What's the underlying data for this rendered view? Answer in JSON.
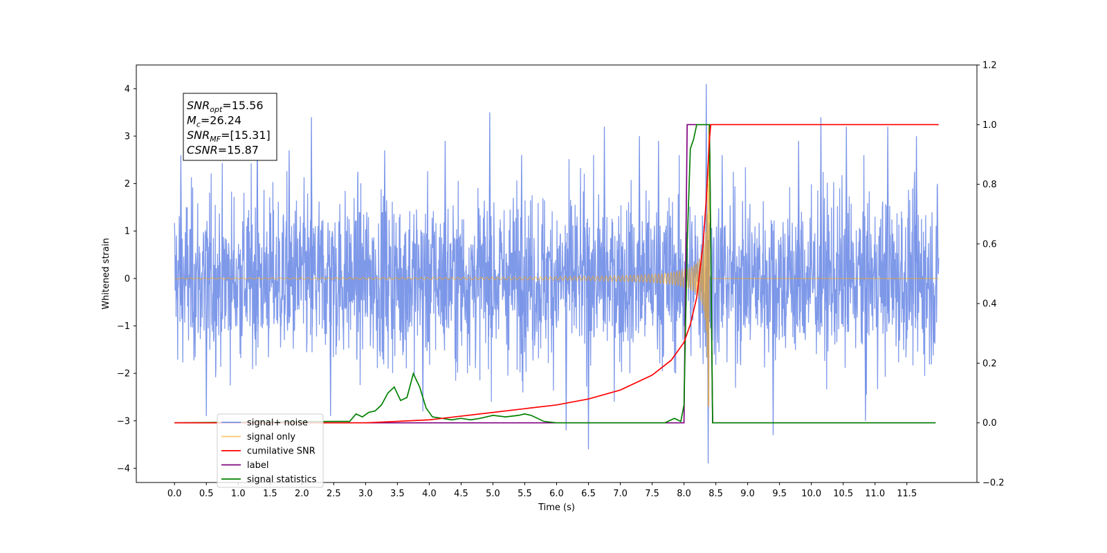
{
  "chart_data": {
    "type": "line",
    "xlabel": "Time (s)",
    "ylabel": "Whitened strain",
    "xlim": [
      -0.6,
      12.6
    ],
    "ylim": [
      -4.3,
      4.5
    ],
    "y2lim": [
      -0.2,
      1.2
    ],
    "x_ticks": [
      "0.0",
      "0.5",
      "1.0",
      "1.5",
      "2.0",
      "2.5",
      "3.0",
      "3.5",
      "4.0",
      "4.5",
      "5.0",
      "5.5",
      "6.0",
      "6.5",
      "7.0",
      "7.5",
      "8.0",
      "8.5",
      "9.0",
      "9.5",
      "10.0",
      "10.5",
      "11.0",
      "11.5"
    ],
    "y_ticks": [
      "−4",
      "−3",
      "−2",
      "−1",
      "0",
      "1",
      "2",
      "3",
      "4"
    ],
    "y2_ticks": [
      "−0.2",
      "0.0",
      "0.2",
      "0.4",
      "0.6",
      "0.8",
      "1.0",
      "1.2"
    ],
    "grid": false,
    "legend_placement": "lower-left",
    "annotation": {
      "lines": [
        {
          "main": "SNR",
          "sub": "opt",
          "rest": "=15.56"
        },
        {
          "main": "M",
          "sub": "c",
          "rest": "=26.24"
        },
        {
          "main": "SNR",
          "sub": "MF",
          "rest": "=[15.31]"
        },
        {
          "main": "CSNR",
          "sub": "",
          "rest": "=15.87"
        }
      ]
    },
    "series": [
      {
        "name": "signal+ noise",
        "axis": "left",
        "color": "#7893e8",
        "style": "noise",
        "x_range": [
          0.0,
          12.0
        ],
        "amplitude_envelope": 1.6,
        "spikes": [
          [
            0.1,
            2.6
          ],
          [
            0.5,
            -2.9
          ],
          [
            1.3,
            3.2
          ],
          [
            1.8,
            2.7
          ],
          [
            2.15,
            3.4
          ],
          [
            2.45,
            -2.9
          ],
          [
            3.3,
            2.7
          ],
          [
            3.9,
            -2.8
          ],
          [
            4.25,
            2.9
          ],
          [
            4.95,
            3.5
          ],
          [
            5.45,
            2.6
          ],
          [
            6.15,
            -3.2
          ],
          [
            6.5,
            -3.6
          ],
          [
            6.75,
            3.2
          ],
          [
            7.3,
            3.0
          ],
          [
            7.6,
            2.9
          ],
          [
            8.35,
            4.1
          ],
          [
            8.38,
            -3.9
          ],
          [
            8.6,
            2.6
          ],
          [
            9.4,
            -3.3
          ],
          [
            9.8,
            2.9
          ],
          [
            10.15,
            3.4
          ],
          [
            10.55,
            3.2
          ],
          [
            10.85,
            -3.0
          ],
          [
            11.2,
            3.2
          ],
          [
            11.65,
            3.0
          ]
        ]
      },
      {
        "name": "signal only",
        "axis": "left",
        "color": "#ffa500",
        "style": "chirp",
        "x_range": [
          0.0,
          12.0
        ],
        "merger_time": 8.4,
        "peak_amplitude": 3.2
      },
      {
        "name": "cumilative SNR",
        "axis": "right",
        "color": "#ff0000",
        "x": [
          0.0,
          3.0,
          4.0,
          5.0,
          6.0,
          6.5,
          7.0,
          7.5,
          7.8,
          8.0,
          8.1,
          8.2,
          8.3,
          8.35,
          8.4,
          8.42,
          12.0
        ],
        "y": [
          0.0,
          0.0,
          0.01,
          0.035,
          0.06,
          0.08,
          0.11,
          0.16,
          0.21,
          0.27,
          0.33,
          0.42,
          0.6,
          0.75,
          0.95,
          1.0,
          1.0
        ]
      },
      {
        "name": "label",
        "axis": "right",
        "color": "#800080",
        "x": [
          0.0,
          8.0,
          8.05,
          8.4,
          8.45,
          11.95
        ],
        "y": [
          0.0,
          0.0,
          1.0,
          1.0,
          0.0,
          0.0
        ]
      },
      {
        "name": "signal statistics",
        "axis": "right",
        "color": "#008000",
        "x": [
          0.0,
          2.5,
          2.75,
          2.85,
          2.95,
          3.05,
          3.15,
          3.25,
          3.35,
          3.45,
          3.55,
          3.65,
          3.75,
          3.85,
          3.95,
          4.05,
          4.2,
          4.35,
          4.5,
          4.65,
          4.8,
          5.0,
          5.2,
          5.4,
          5.5,
          5.6,
          5.8,
          6.0,
          6.2,
          6.5,
          6.8,
          7.0,
          7.7,
          7.85,
          7.95,
          8.0,
          8.05,
          8.1,
          8.15,
          8.2,
          8.3,
          8.4,
          8.45,
          11.95
        ],
        "y": [
          0.0,
          0.005,
          0.005,
          0.03,
          0.02,
          0.035,
          0.04,
          0.06,
          0.1,
          0.12,
          0.075,
          0.085,
          0.165,
          0.12,
          0.05,
          0.02,
          0.015,
          0.01,
          0.015,
          0.01,
          0.015,
          0.025,
          0.02,
          0.025,
          0.03,
          0.025,
          0.005,
          0.0,
          0.0,
          0.0,
          0.0,
          0.0,
          0.0,
          0.015,
          0.005,
          0.06,
          0.6,
          0.92,
          0.95,
          1.0,
          1.0,
          1.0,
          0.0,
          0.0
        ]
      }
    ],
    "legend": [
      {
        "label": "signal+ noise",
        "color": "#7893e8"
      },
      {
        "label": "signal only",
        "color": "#ffc66b"
      },
      {
        "label": "cumilative SNR",
        "color": "#ff0000"
      },
      {
        "label": "label",
        "color": "#800080"
      },
      {
        "label": "signal statistics",
        "color": "#008000"
      }
    ]
  }
}
